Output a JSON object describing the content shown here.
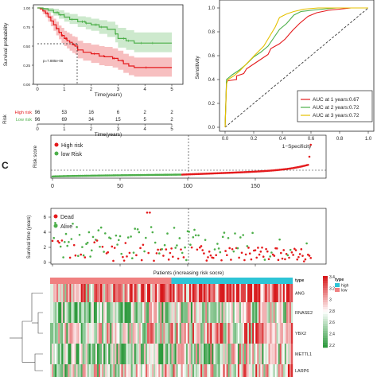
{
  "panel_c_label": "C",
  "chart_data": [
    {
      "type": "line",
      "kind": "kaplan-meier",
      "ylabel": "Survival probability",
      "xlabel": "Time(years)",
      "xlim": [
        0,
        5
      ],
      "ylim": [
        0,
        1
      ],
      "x_ticks": [
        "0",
        "1",
        "2",
        "3",
        "4",
        "5"
      ],
      "y_ticks": [
        "0.00",
        "0.25",
        "0.50",
        "0.75",
        "1.00"
      ],
      "pvalue_text": "p=7.885e-06",
      "median_time": 1.4,
      "series": [
        {
          "name": "High risk",
          "color": "#e41a1c",
          "time": [
            0,
            0.1,
            0.2,
            0.3,
            0.4,
            0.5,
            0.6,
            0.7,
            0.8,
            0.9,
            1.0,
            1.1,
            1.2,
            1.3,
            1.4,
            1.5,
            1.7,
            2.0,
            2.3,
            2.5,
            2.8,
            3.0,
            3.2,
            3.4,
            3.6,
            4.0,
            5.0
          ],
          "survival": [
            1.0,
            0.99,
            0.96,
            0.93,
            0.88,
            0.83,
            0.78,
            0.73,
            0.68,
            0.64,
            0.6,
            0.57,
            0.55,
            0.52,
            0.5,
            0.45,
            0.42,
            0.4,
            0.37,
            0.36,
            0.34,
            0.31,
            0.27,
            0.24,
            0.22,
            0.22,
            0.22
          ],
          "ci_low": [
            1.0,
            0.97,
            0.92,
            0.88,
            0.82,
            0.76,
            0.7,
            0.64,
            0.59,
            0.54,
            0.5,
            0.47,
            0.44,
            0.41,
            0.39,
            0.34,
            0.31,
            0.28,
            0.25,
            0.24,
            0.22,
            0.19,
            0.15,
            0.12,
            0.1,
            0.1,
            0.1
          ],
          "ci_high": [
            1.0,
            1.0,
            1.0,
            0.98,
            0.94,
            0.9,
            0.86,
            0.82,
            0.77,
            0.74,
            0.7,
            0.68,
            0.66,
            0.63,
            0.62,
            0.57,
            0.54,
            0.52,
            0.5,
            0.49,
            0.47,
            0.44,
            0.4,
            0.37,
            0.35,
            0.35,
            0.35
          ]
        },
        {
          "name": "Low risk",
          "color": "#4daf4a",
          "time": [
            0,
            0.2,
            0.4,
            0.6,
            0.8,
            1.0,
            1.2,
            1.5,
            1.8,
            2.0,
            2.3,
            2.6,
            2.9,
            3.0,
            3.3,
            3.6,
            4.0,
            5.0
          ],
          "survival": [
            1.0,
            0.99,
            0.97,
            0.94,
            0.91,
            0.88,
            0.85,
            0.82,
            0.8,
            0.78,
            0.75,
            0.72,
            0.66,
            0.6,
            0.57,
            0.54,
            0.54,
            0.54
          ],
          "ci_low": [
            1.0,
            0.97,
            0.94,
            0.9,
            0.86,
            0.82,
            0.79,
            0.75,
            0.72,
            0.7,
            0.66,
            0.62,
            0.55,
            0.48,
            0.45,
            0.42,
            0.42,
            0.42
          ],
          "ci_high": [
            1.0,
            1.0,
            1.0,
            0.99,
            0.97,
            0.94,
            0.92,
            0.89,
            0.88,
            0.86,
            0.84,
            0.82,
            0.78,
            0.74,
            0.71,
            0.68,
            0.68,
            0.68
          ]
        }
      ],
      "legend": [
        "High risk",
        "Low risk"
      ]
    },
    {
      "type": "table",
      "kind": "number-at-risk",
      "title": "Risk",
      "xlabel": "Time(years)",
      "x_ticks": [
        "0",
        "1",
        "2",
        "3",
        "4",
        "5"
      ],
      "rows": [
        {
          "name": "High risk",
          "color": "#e41a1c",
          "values": [
            "96",
            "53",
            "16",
            "6",
            "2",
            "2"
          ]
        },
        {
          "name": "Low risk",
          "color": "#4daf4a",
          "values": [
            "96",
            "69",
            "34",
            "15",
            "5",
            "2"
          ]
        }
      ]
    },
    {
      "type": "line",
      "kind": "roc",
      "xlabel": "1−Specificity",
      "ylabel": "Sensitivity",
      "xlim": [
        0,
        1
      ],
      "ylim": [
        0,
        1
      ],
      "x_ticks": [
        "0.0",
        "0.2",
        "0.4",
        "0.6",
        "0.8",
        "1.0"
      ],
      "y_ticks": [
        "0.0",
        "0.2",
        "0.4",
        "0.6",
        "0.8",
        "1.0"
      ],
      "series": [
        {
          "name": "AUC at 1 years:0.67",
          "color": "#e41a1c",
          "x": [
            0.0,
            0.01,
            0.02,
            0.08,
            0.08,
            0.13,
            0.15,
            0.2,
            0.25,
            0.3,
            0.32,
            0.38,
            0.42,
            0.47,
            0.52,
            0.58,
            0.64,
            0.72,
            0.8,
            0.88,
            1.0
          ],
          "y": [
            0.0,
            0.38,
            0.39,
            0.4,
            0.43,
            0.45,
            0.49,
            0.53,
            0.57,
            0.61,
            0.66,
            0.7,
            0.74,
            0.81,
            0.87,
            0.93,
            0.96,
            0.98,
            0.99,
            1.0,
            1.0
          ]
        },
        {
          "name": "AUC at 2 years:0.72",
          "color": "#4daf4a",
          "x": [
            0.0,
            0.01,
            0.02,
            0.05,
            0.1,
            0.15,
            0.2,
            0.25,
            0.3,
            0.34,
            0.38,
            0.43,
            0.48,
            0.53,
            0.6,
            0.68,
            0.78,
            0.88,
            1.0
          ],
          "y": [
            0.0,
            0.4,
            0.41,
            0.44,
            0.48,
            0.53,
            0.59,
            0.63,
            0.68,
            0.75,
            0.82,
            0.87,
            0.94,
            0.97,
            0.98,
            0.99,
            1.0,
            1.0,
            1.0
          ]
        },
        {
          "name": "AUC at 3 years:0.72",
          "color": "#e5c100",
          "x": [
            0.0,
            0.01,
            0.02,
            0.06,
            0.1,
            0.14,
            0.18,
            0.22,
            0.27,
            0.31,
            0.35,
            0.38,
            0.43,
            0.48,
            0.55,
            0.65,
            0.75,
            0.85,
            1.0
          ],
          "y": [
            0.0,
            0.36,
            0.4,
            0.43,
            0.47,
            0.52,
            0.57,
            0.62,
            0.68,
            0.76,
            0.84,
            0.92,
            0.95,
            0.97,
            0.99,
            1.0,
            1.0,
            1.0,
            1.0
          ]
        }
      ],
      "diagonal": true
    },
    {
      "type": "scatter",
      "kind": "risk-score",
      "ylabel": "Risk score",
      "xlim": [
        0,
        192
      ],
      "ylim": [
        0,
        20
      ],
      "x_ticks": [
        "0",
        "50",
        "100",
        "150"
      ],
      "cutoff_index": 96,
      "cutoff_score": 1.0,
      "legend": [
        "High risk",
        "low Risk"
      ],
      "colors": {
        "high": "#e41a1c",
        "low": "#4daf4a"
      },
      "n_points": 192
    },
    {
      "type": "scatter",
      "kind": "survival-status",
      "ylabel": "Survival time (years)",
      "xlabel": "Patients (increasing risk socre)",
      "xlim": [
        0,
        192
      ],
      "ylim": [
        0,
        7
      ],
      "x_ticks": [
        "0",
        "50",
        "100",
        "150"
      ],
      "y_ticks": [
        "0",
        "2",
        "4",
        "6"
      ],
      "cutoff_index": 96,
      "legend": [
        "Dead",
        "Alive"
      ],
      "colors": {
        "dead": "#e41a1c",
        "alive": "#4daf4a"
      }
    },
    {
      "type": "heatmap",
      "kind": "expression",
      "genes": [
        "ANG",
        "RNASE2",
        "YBX2",
        "METTL1",
        "LARP6"
      ],
      "annotation_label": "type",
      "annotation_legend_title": "type",
      "annotation_groups": [
        {
          "name": "high",
          "color": "#2ec4d6"
        },
        {
          "name": "low",
          "color": "#f08080"
        }
      ],
      "color_scale": {
        "low_color": "#2e9a3e",
        "mid_color": "#ffffff",
        "high_color": "#d7191c",
        "min": 2.2,
        "max": 3.4
      },
      "color_ticks": [
        "3.4",
        "3.2",
        "3",
        "2.8",
        "2.6",
        "2.4",
        "2.2"
      ],
      "gene_bias": [
        0.55,
        -0.3,
        0.05,
        -0.35,
        0.0
      ]
    }
  ]
}
